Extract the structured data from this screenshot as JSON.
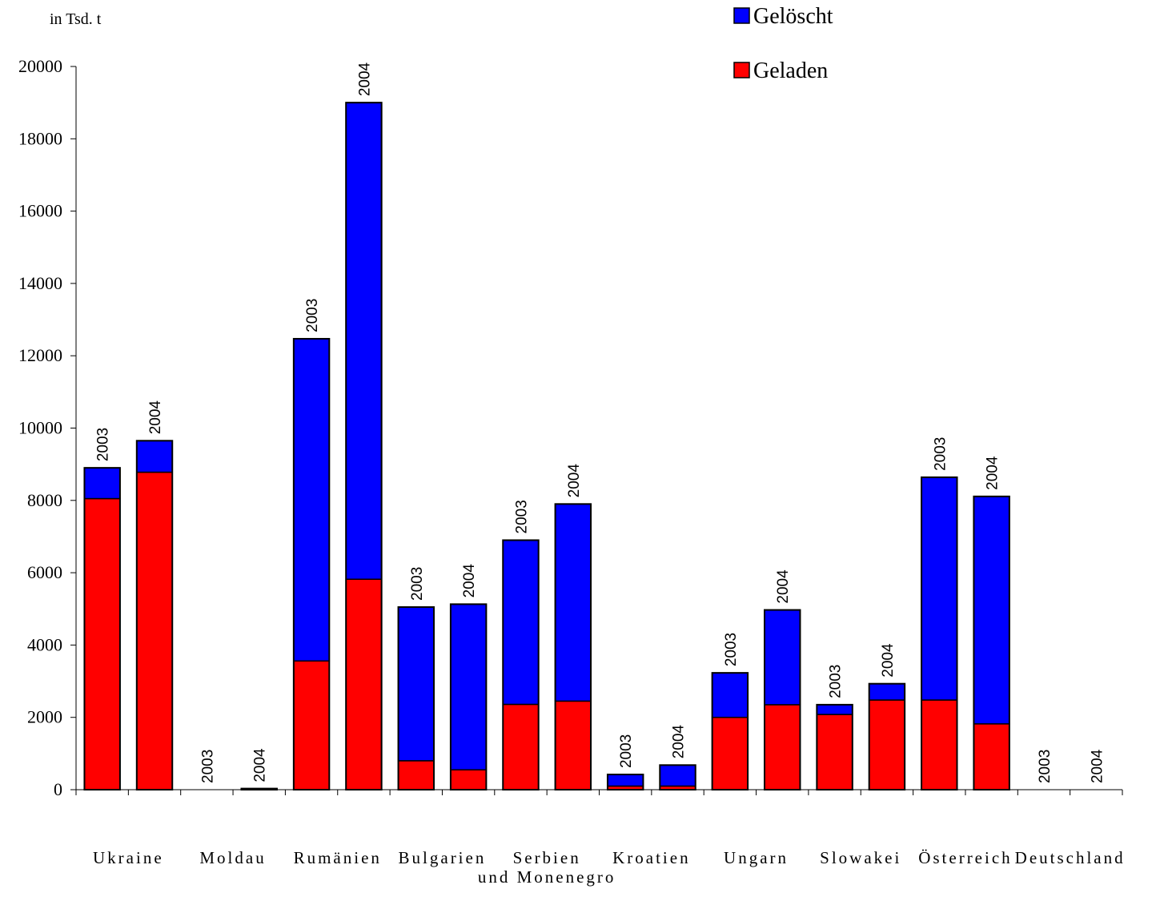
{
  "chart_data": {
    "type": "bar",
    "stacked": true,
    "unit_label": "in Tsd. t",
    "ylim": [
      0,
      20000
    ],
    "yticks": [
      0,
      2000,
      4000,
      6000,
      8000,
      10000,
      12000,
      14000,
      16000,
      18000,
      20000
    ],
    "groups": [
      {
        "label": [
          "Ukraine"
        ]
      },
      {
        "label": [
          "Moldau"
        ]
      },
      {
        "label": [
          "Rumänien"
        ]
      },
      {
        "label": [
          "Bulgarien"
        ]
      },
      {
        "label": [
          "Serbien",
          "und Monenegro"
        ]
      },
      {
        "label": [
          "Kroatien"
        ]
      },
      {
        "label": [
          "Ungarn"
        ]
      },
      {
        "label": [
          "Slowakei"
        ]
      },
      {
        "label": [
          "Österreich"
        ]
      },
      {
        "label": [
          "Deutschland"
        ]
      }
    ],
    "bar_labels": [
      "2003",
      "2004",
      "2003",
      "2004",
      "2003",
      "2004",
      "2003",
      "2004",
      "2003",
      "2004",
      "2003",
      "2004",
      "2003",
      "2004",
      "2003",
      "2004",
      "2003",
      "2004",
      "2003",
      "2004"
    ],
    "series": [
      {
        "name": "Geladen",
        "color": "#ff0000",
        "values": [
          8050,
          8780,
          0,
          0,
          3560,
          5820,
          800,
          550,
          2360,
          2450,
          100,
          100,
          2000,
          2350,
          2080,
          2480,
          2480,
          1820,
          0,
          0
        ]
      },
      {
        "name": "Gelöscht",
        "color": "#0000ff",
        "values": [
          850,
          870,
          0,
          30,
          8910,
          13180,
          4250,
          4580,
          4540,
          5450,
          320,
          580,
          1230,
          2620,
          270,
          450,
          6160,
          6290,
          0,
          0
        ]
      }
    ],
    "legend": {
      "placement": "top-right",
      "order": [
        "Gelöscht",
        "Geladen"
      ]
    }
  }
}
